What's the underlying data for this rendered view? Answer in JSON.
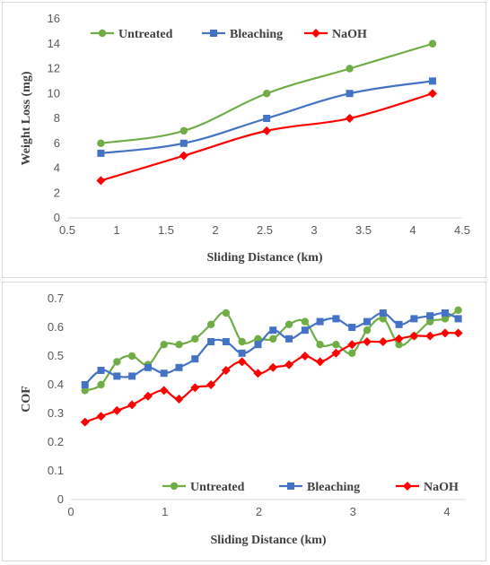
{
  "chart_data": [
    {
      "type": "line",
      "title": "",
      "xlabel": "Sliding Distance (km)",
      "ylabel": "Weight Loss (mg)",
      "xlim": [
        0.5,
        4.5
      ],
      "ylim": [
        0,
        16
      ],
      "xticks": [
        0.5,
        1,
        1.5,
        2,
        2.5,
        3,
        3.5,
        4,
        4.5
      ],
      "xtick_labels": [
        "0.5",
        "1",
        "1.5",
        "2",
        "2.5",
        "3",
        "3.5",
        "4",
        "4.5"
      ],
      "yticks": [
        0,
        2,
        4,
        6,
        8,
        10,
        12,
        14,
        16
      ],
      "ytick_labels": [
        "0",
        "2",
        "4",
        "6",
        "8",
        "10",
        "12",
        "14",
        "16"
      ],
      "grid": false,
      "legend": "top",
      "smooth": true,
      "x": [
        0.84,
        1.68,
        2.52,
        3.36,
        4.2
      ],
      "series": [
        {
          "name": "Untreated",
          "color": "#70ad47",
          "marker": "circle",
          "values": [
            6,
            7,
            10,
            12,
            14
          ]
        },
        {
          "name": "Bleaching",
          "color": "#4472c4",
          "marker": "square",
          "values": [
            5.2,
            6,
            8,
            10,
            11
          ]
        },
        {
          "name": "NaOH",
          "color": "#ff0000",
          "marker": "diamond",
          "values": [
            3,
            5,
            7,
            8,
            10
          ]
        }
      ]
    },
    {
      "type": "line",
      "title": "",
      "xlabel": "Sliding Distance (km)",
      "ylabel": "COF",
      "xlim": [
        0,
        4.2
      ],
      "ylim": [
        0,
        0.7
      ],
      "xticks": [
        0,
        1,
        2,
        3,
        4
      ],
      "xtick_labels": [
        "0",
        "1",
        "2",
        "3",
        "4"
      ],
      "yticks": [
        0,
        0.1,
        0.2,
        0.3,
        0.4,
        0.5,
        0.6,
        0.7
      ],
      "ytick_labels": [
        "0",
        "0.1",
        "0.2",
        "0.3",
        "0.4",
        "0.5",
        "0.6",
        "0.7"
      ],
      "grid": false,
      "legend": "bottom-right",
      "smooth": true,
      "x": [
        0.15,
        0.32,
        0.49,
        0.65,
        0.82,
        0.99,
        1.15,
        1.32,
        1.49,
        1.65,
        1.82,
        1.99,
        2.15,
        2.32,
        2.49,
        2.65,
        2.82,
        2.99,
        3.15,
        3.32,
        3.49,
        3.65,
        3.82,
        3.98,
        4.12
      ],
      "series": [
        {
          "name": "Untreated",
          "color": "#70ad47",
          "marker": "circle",
          "values": [
            0.38,
            0.4,
            0.48,
            0.5,
            0.47,
            0.54,
            0.54,
            0.56,
            0.61,
            0.65,
            0.55,
            0.56,
            0.56,
            0.61,
            0.62,
            0.54,
            0.54,
            0.51,
            0.59,
            0.63,
            0.54,
            0.57,
            0.62,
            0.63,
            0.66
          ]
        },
        {
          "name": "Bleaching",
          "color": "#4472c4",
          "marker": "square",
          "values": [
            0.4,
            0.45,
            0.43,
            0.43,
            0.46,
            0.44,
            0.46,
            0.49,
            0.55,
            0.55,
            0.51,
            0.54,
            0.59,
            0.56,
            0.59,
            0.62,
            0.63,
            0.6,
            0.62,
            0.65,
            0.61,
            0.63,
            0.64,
            0.65,
            0.63
          ]
        },
        {
          "name": "NaOH",
          "color": "#ff0000",
          "marker": "diamond",
          "values": [
            0.27,
            0.29,
            0.31,
            0.33,
            0.36,
            0.38,
            0.35,
            0.39,
            0.4,
            0.45,
            0.48,
            0.44,
            0.46,
            0.47,
            0.5,
            0.48,
            0.51,
            0.54,
            0.55,
            0.55,
            0.56,
            0.57,
            0.57,
            0.58,
            0.58
          ]
        }
      ]
    }
  ]
}
